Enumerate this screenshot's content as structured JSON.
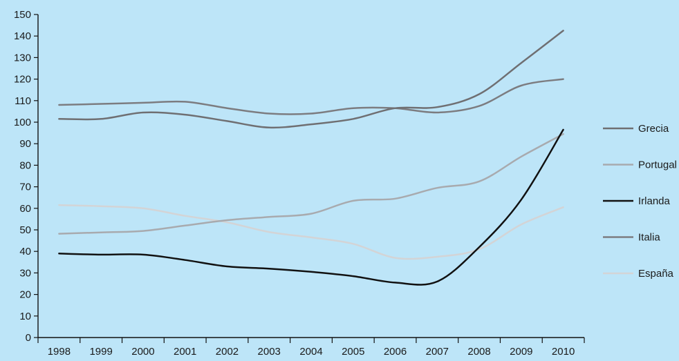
{
  "chart_data": {
    "type": "line",
    "title": "",
    "xlabel": "",
    "ylabel": "",
    "x": [
      "1998",
      "1999",
      "2000",
      "2001",
      "2002",
      "2003",
      "2004",
      "2005",
      "2006",
      "2007",
      "2008",
      "2009",
      "2010"
    ],
    "ylim": [
      0,
      150
    ],
    "yticks": [
      0,
      10,
      20,
      30,
      40,
      50,
      60,
      70,
      80,
      90,
      100,
      110,
      120,
      130,
      140,
      150
    ],
    "grid": false,
    "legend_position": "right",
    "series": [
      {
        "name": "Grecia",
        "color": "#6f6f72",
        "width": 2.5,
        "values": [
          101.5,
          101.5,
          104.5,
          103.5,
          100.5,
          97.5,
          99,
          101.5,
          106.5,
          107,
          113,
          127.5,
          142.5
        ]
      },
      {
        "name": "Portugal",
        "color": "#a8aaae",
        "width": 2.5,
        "values": [
          48.2,
          48.8,
          49.5,
          52,
          54.5,
          56,
          57.5,
          63.5,
          64.5,
          69.5,
          72.5,
          84,
          94.5
        ]
      },
      {
        "name": "Irlanda",
        "color": "#111111",
        "width": 2.5,
        "values": [
          39,
          38.5,
          38.5,
          36,
          33,
          32,
          30.5,
          28.5,
          25.5,
          26,
          42,
          64,
          96.5
        ]
      },
      {
        "name": "Italia",
        "color": "#7c7c80",
        "width": 2.5,
        "values": [
          108,
          108.5,
          109,
          109.5,
          106.5,
          104,
          104,
          106.5,
          106.5,
          104.5,
          107.5,
          117,
          120
        ]
      },
      {
        "name": "España",
        "color": "#d3d4d6",
        "width": 2.5,
        "values": [
          61.5,
          61,
          60,
          56.5,
          53.5,
          49,
          46.5,
          43.5,
          37,
          37.5,
          41,
          52.5,
          60.5
        ]
      }
    ]
  }
}
